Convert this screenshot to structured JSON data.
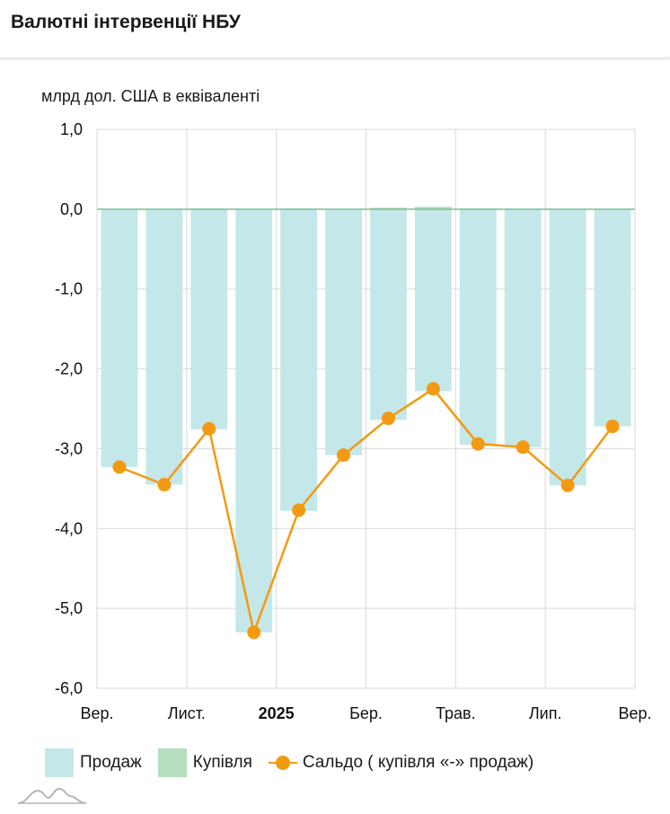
{
  "header": {
    "title": "Валютні інтервенції НБУ"
  },
  "colors": {
    "sales": "#c4e8e9",
    "purchases": "#b6dfc0",
    "balance": "#f39a12",
    "grid": "#d9d9d9"
  },
  "legend": {
    "sales": "Продаж",
    "purchases": "Купівля",
    "balance": "Сальдо ( купівля «-» продаж)"
  },
  "chart_data": {
    "type": "bar",
    "ylabel": "млрд дол. США в еквіваленті",
    "ylim": [
      -6,
      1
    ],
    "yticks": [
      "1,0",
      "0,0",
      "-1,0",
      "-2,0",
      "-3,0",
      "-4,0",
      "-5,0",
      "-6,0"
    ],
    "ytick_values": [
      1,
      0,
      -1,
      -2,
      -3,
      -4,
      -5,
      -6
    ],
    "xtick_labels": [
      {
        "label": "Вер.",
        "at": 0
      },
      {
        "label": "Лист.",
        "at": 2
      },
      {
        "label": "2025",
        "at": 4,
        "bold": true
      },
      {
        "label": "Бер.",
        "at": 6
      },
      {
        "label": "Трав.",
        "at": 8
      },
      {
        "label": "Лип.",
        "at": 10
      },
      {
        "label": "Вер.",
        "at": 12
      }
    ],
    "grid": true,
    "legend_position": "bottom",
    "series": [
      {
        "name": "Продаж",
        "type": "bar",
        "values": [
          -3.23,
          -3.45,
          -2.76,
          -5.3,
          -3.78,
          -3.08,
          -2.64,
          -2.28,
          -2.95,
          -2.98,
          -3.46,
          -2.72
        ]
      },
      {
        "name": "Купівля",
        "type": "bar",
        "values": [
          0.0,
          0.0,
          0.01,
          0.0,
          0.01,
          0.0,
          0.02,
          0.03,
          0.01,
          0.0,
          0.0,
          0.0
        ]
      },
      {
        "name": "Сальдо ( купівля «-» продаж)",
        "type": "line",
        "values": [
          -3.23,
          -3.45,
          -2.75,
          -5.3,
          -3.77,
          -3.08,
          -2.62,
          -2.25,
          -2.94,
          -2.98,
          -3.46,
          -2.72
        ]
      }
    ]
  }
}
